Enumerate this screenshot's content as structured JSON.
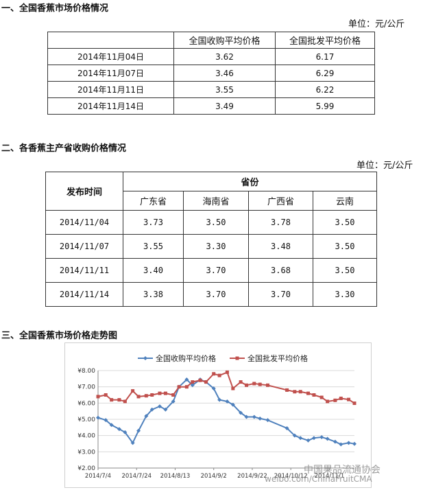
{
  "section1": {
    "heading": "一、全国香蕉市场价格情况",
    "unit": "单位：元/公斤",
    "headers": [
      "",
      "全国收购平均价格",
      "全国批发平均价格"
    ],
    "rows": [
      [
        "2014年11月04日",
        "3.62",
        "6.17"
      ],
      [
        "2014年11月07日",
        "3.46",
        "6.29"
      ],
      [
        "2014年11月11日",
        "3.55",
        "6.22"
      ],
      [
        "2014年11月14日",
        "3.49",
        "5.99"
      ]
    ]
  },
  "section2": {
    "heading": "二、各香蕉主产省收购价格情况",
    "unit": "单位：元/公斤",
    "date_header": "发布时间",
    "province_header": "省份",
    "provinces": [
      "广东省",
      "海南省",
      "广西省",
      "云南"
    ],
    "rows": [
      [
        "2014/11/04",
        "3.73",
        "3.50",
        "3.78",
        "3.50"
      ],
      [
        "2014/11/07",
        "3.55",
        "3.30",
        "3.48",
        "3.50"
      ],
      [
        "2014/11/11",
        "3.40",
        "3.70",
        "3.68",
        "3.50"
      ],
      [
        "2014/11/14",
        "3.38",
        "3.70",
        "3.70",
        "3.30"
      ]
    ]
  },
  "section3": {
    "heading": "三、全国香蕉市场价格走势图"
  },
  "chart_data": {
    "type": "line",
    "title": "",
    "xlabel": "",
    "ylabel": "",
    "ylim": [
      2,
      8
    ],
    "yticks": [
      "¥2.00",
      "¥3.00",
      "¥4.00",
      "¥5.00",
      "¥6.00",
      "¥7.00",
      "¥8.00"
    ],
    "xticks": [
      "2014/7/4",
      "2014/7/24",
      "2014/8/13",
      "2014/9/2",
      "2014/9/22",
      "2014/10/12",
      "2014/11/1"
    ],
    "x": [
      "2014-07-04",
      "2014-07-08",
      "2014-07-11",
      "2014-07-15",
      "2014-07-18",
      "2014-07-22",
      "2014-07-25",
      "2014-07-29",
      "2014-08-01",
      "2014-08-05",
      "2014-08-08",
      "2014-08-12",
      "2014-08-15",
      "2014-08-19",
      "2014-08-22",
      "2014-08-26",
      "2014-08-29",
      "2014-09-02",
      "2014-09-05",
      "2014-09-09",
      "2014-09-12",
      "2014-09-16",
      "2014-09-19",
      "2014-09-23",
      "2014-09-26",
      "2014-09-30",
      "2014-10-10",
      "2014-10-14",
      "2014-10-17",
      "2014-10-21",
      "2014-10-24",
      "2014-10-28",
      "2014-10-31",
      "2014-11-04",
      "2014-11-07",
      "2014-11-11",
      "2014-11-14"
    ],
    "legend_position": "top",
    "series": [
      {
        "name": "全国收购平均价格",
        "color": "#4f81bd",
        "values": [
          5.1,
          4.95,
          4.65,
          4.4,
          4.2,
          3.55,
          4.3,
          5.2,
          5.6,
          5.8,
          5.6,
          6.1,
          7.0,
          7.45,
          7.1,
          7.45,
          7.3,
          6.9,
          6.2,
          6.1,
          5.9,
          5.4,
          5.15,
          5.15,
          5.05,
          4.95,
          4.45,
          4.0,
          3.85,
          3.7,
          3.85,
          3.9,
          3.8,
          3.62,
          3.46,
          3.55,
          3.49
        ]
      },
      {
        "name": "全国批发平均价格",
        "color": "#c0504d",
        "values": [
          6.4,
          6.5,
          6.2,
          6.2,
          6.1,
          6.75,
          6.4,
          6.45,
          6.5,
          6.6,
          6.6,
          6.5,
          7.0,
          7.0,
          7.3,
          7.4,
          7.3,
          7.8,
          7.7,
          7.9,
          6.9,
          7.3,
          7.1,
          7.2,
          7.15,
          7.1,
          6.8,
          6.7,
          6.7,
          6.6,
          6.5,
          6.35,
          6.1,
          6.17,
          6.29,
          6.22,
          5.99
        ]
      }
    ]
  },
  "watermarks": {
    "wm1": "中国果品流通协会",
    "wm2": "weibo.com/ChinaFruitCMA"
  }
}
